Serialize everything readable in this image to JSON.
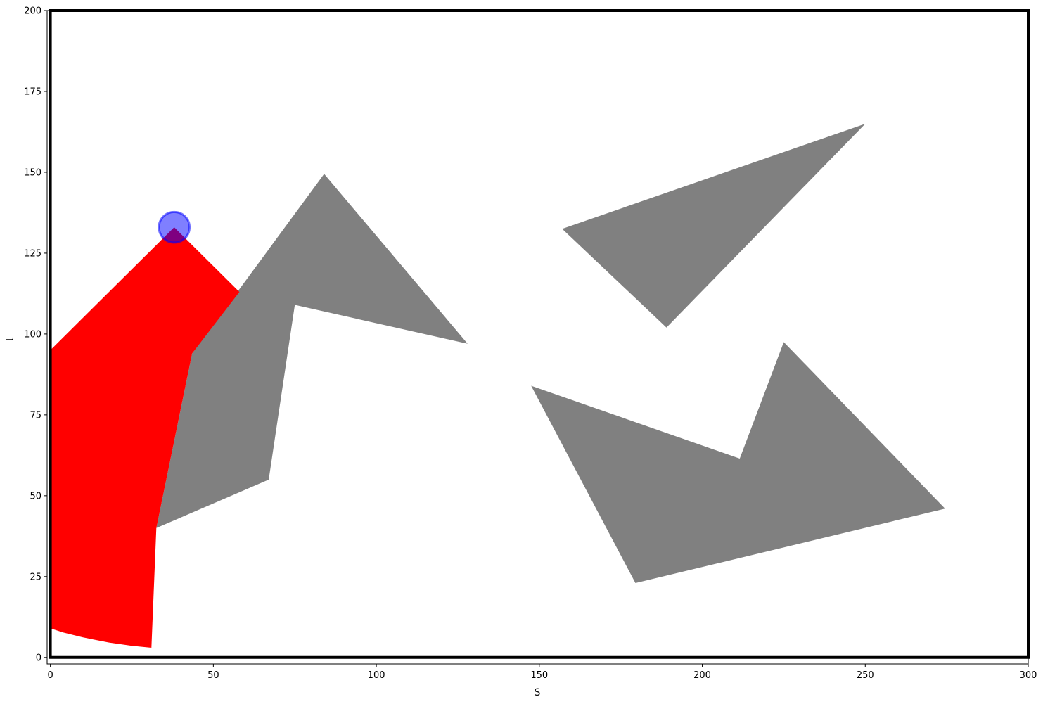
{
  "chart_data": {
    "type": "scatter",
    "xlabel": "S",
    "ylabel": "t",
    "xlim": [
      -1,
      300
    ],
    "ylim": [
      -2,
      200
    ],
    "xticks": [
      "0",
      "50",
      "100",
      "150",
      "200",
      "250",
      "300"
    ],
    "yticks": [
      "0",
      "25",
      "50",
      "75",
      "100",
      "125",
      "150",
      "175",
      "200"
    ],
    "grid": false,
    "legend": null,
    "colors": {
      "region": "#ff0000",
      "obstacle": "#808080",
      "agent_fill": "#0000ff",
      "agent_edge": "#0000ff",
      "border": "#000000"
    },
    "boundary": [
      [
        0,
        0
      ],
      [
        300,
        0
      ],
      [
        300,
        200
      ],
      [
        0,
        200
      ]
    ],
    "agent": {
      "x": 38,
      "y": 133,
      "radius": 4.7
    },
    "region_polygon": [
      [
        0,
        95
      ],
      [
        38,
        133
      ],
      [
        58,
        113
      ],
      [
        43.5,
        94
      ],
      [
        32.5,
        40
      ],
      [
        31,
        3
      ],
      [
        25,
        3.6
      ],
      [
        18,
        4.6
      ],
      [
        10,
        6.2
      ],
      [
        4,
        7.7
      ],
      [
        0,
        9
      ]
    ],
    "obstacles": [
      [
        [
          32.5,
          40
        ],
        [
          43.5,
          94
        ],
        [
          84,
          149.5
        ],
        [
          128,
          97
        ],
        [
          75,
          109
        ],
        [
          67,
          55
        ]
      ],
      [
        [
          157,
          132.5
        ],
        [
          250,
          165
        ],
        [
          189,
          102
        ]
      ],
      [
        [
          147.5,
          84
        ],
        [
          179.5,
          23
        ],
        [
          274.5,
          46
        ],
        [
          225,
          97.5
        ],
        [
          211.5,
          61.5
        ]
      ]
    ]
  }
}
